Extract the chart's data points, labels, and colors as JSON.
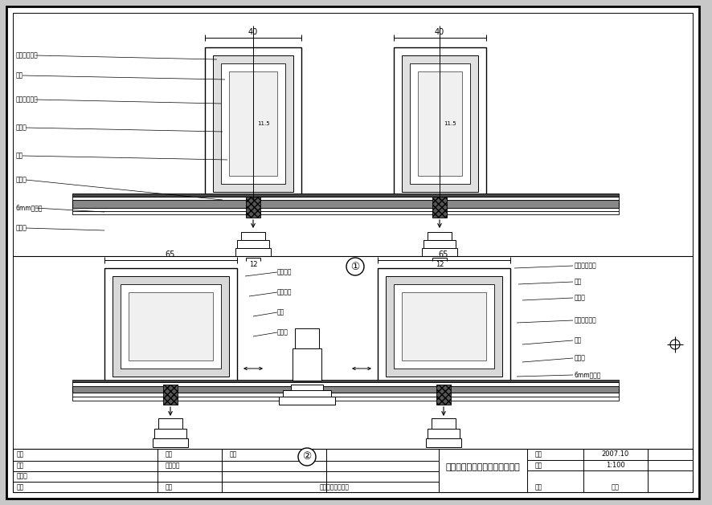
{
  "title": "明框玻璃幕墙节点大样图（一）",
  "figure_bg": "#c8c8c8",
  "drawing_bg": "#ffffff",
  "date": "2007.10",
  "scale": "1:100",
  "material": "结构",
  "dim_top": "40",
  "dim_bottom": "65",
  "dim_12": "12",
  "node1": "①",
  "node2": "②",
  "company": "城镇规划勘察中心",
  "top_labels": [
    "基础墙内龙骨",
    "龙骨",
    "基础墙内龙骨",
    "自攻钉",
    "内框",
    "双组分",
    "6mm钢化玻",
    "钢压条"
  ],
  "bottom_left_labels": [
    "开窗外框",
    "开窗内框",
    "内框",
    "双组分"
  ],
  "bottom_right_labels": [
    "基础墙内龙骨",
    "龙骨",
    "自攻钉",
    "基础墙内龙骨",
    "内框",
    "双组分",
    "6mm钢化玻"
  ]
}
